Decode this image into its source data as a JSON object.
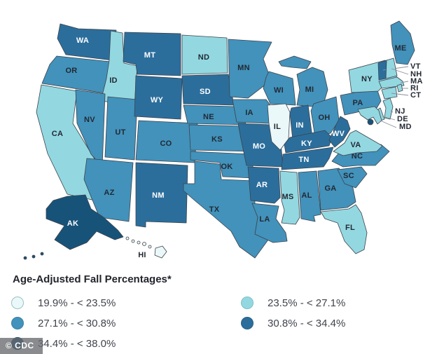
{
  "title": "Age-Adjusted Fall Percentages*",
  "watermark": "© CDC",
  "legend": {
    "items": [
      {
        "bin": 1,
        "label": "19.9% - < 23.5%",
        "color": "#eaf8f9"
      },
      {
        "bin": 2,
        "label": "23.5% - < 27.1%",
        "color": "#93d8e1"
      },
      {
        "bin": 3,
        "label": "27.1% - < 30.8%",
        "color": "#4292bb"
      },
      {
        "bin": 4,
        "label": "30.8% - < 34.4%",
        "color": "#2b6e9c"
      },
      {
        "bin": 5,
        "label": "34.4% - < 38.0%",
        "color": "#175379"
      }
    ]
  },
  "chart_data": {
    "type": "choropleth",
    "title": "Age-Adjusted Fall Percentages*",
    "region": "United States",
    "legend_position": "bottom",
    "bins": [
      "19.9% - < 23.5%",
      "23.5% - < 27.1%",
      "27.1% - < 30.8%",
      "30.8% - < 34.4%",
      "34.4% - < 38.0%"
    ],
    "bin_colors": [
      "#eaf8f9",
      "#93d8e1",
      "#4292bb",
      "#2b6e9c",
      "#175379"
    ],
    "outside_labeled_states": [
      "VT",
      "NH",
      "MA",
      "RI",
      "CT",
      "NJ",
      "DE",
      "MD"
    ],
    "states": [
      {
        "abbr": "WA",
        "bin": 4,
        "range": "30.8% - < 34.4%"
      },
      {
        "abbr": "OR",
        "bin": 3,
        "range": "27.1% - < 30.8%"
      },
      {
        "abbr": "CA",
        "bin": 2,
        "range": "23.5% - < 27.1%"
      },
      {
        "abbr": "ID",
        "bin": 2,
        "range": "23.5% - < 27.1%"
      },
      {
        "abbr": "NV",
        "bin": 3,
        "range": "27.1% - < 30.8%"
      },
      {
        "abbr": "UT",
        "bin": 3,
        "range": "27.1% - < 30.8%"
      },
      {
        "abbr": "AZ",
        "bin": 3,
        "range": "27.1% - < 30.8%"
      },
      {
        "abbr": "MT",
        "bin": 4,
        "range": "30.8% - < 34.4%"
      },
      {
        "abbr": "WY",
        "bin": 4,
        "range": "30.8% - < 34.4%"
      },
      {
        "abbr": "CO",
        "bin": 3,
        "range": "27.1% - < 30.8%"
      },
      {
        "abbr": "NM",
        "bin": 4,
        "range": "30.8% - < 34.4%"
      },
      {
        "abbr": "ND",
        "bin": 2,
        "range": "23.5% - < 27.1%"
      },
      {
        "abbr": "SD",
        "bin": 4,
        "range": "30.8% - < 34.4%"
      },
      {
        "abbr": "NE",
        "bin": 3,
        "range": "27.1% - < 30.8%"
      },
      {
        "abbr": "KS",
        "bin": 3,
        "range": "27.1% - < 30.8%"
      },
      {
        "abbr": "OK",
        "bin": 3,
        "range": "27.1% - < 30.8%"
      },
      {
        "abbr": "TX",
        "bin": 3,
        "range": "27.1% - < 30.8%"
      },
      {
        "abbr": "MN",
        "bin": 3,
        "range": "27.1% - < 30.8%"
      },
      {
        "abbr": "IA",
        "bin": 3,
        "range": "27.1% - < 30.8%"
      },
      {
        "abbr": "MO",
        "bin": 4,
        "range": "30.8% - < 34.4%"
      },
      {
        "abbr": "AR",
        "bin": 4,
        "range": "30.8% - < 34.4%"
      },
      {
        "abbr": "LA",
        "bin": 3,
        "range": "27.1% - < 30.8%"
      },
      {
        "abbr": "WI",
        "bin": 3,
        "range": "27.1% - < 30.8%"
      },
      {
        "abbr": "IL",
        "bin": 1,
        "range": "19.9% - < 23.5%"
      },
      {
        "abbr": "MI",
        "bin": 3,
        "range": "27.1% - < 30.8%"
      },
      {
        "abbr": "IN",
        "bin": 4,
        "range": "30.8% - < 34.4%"
      },
      {
        "abbr": "OH",
        "bin": 3,
        "range": "27.1% - < 30.8%"
      },
      {
        "abbr": "KY",
        "bin": 4,
        "range": "30.8% - < 34.4%"
      },
      {
        "abbr": "TN",
        "bin": 4,
        "range": "30.8% - < 34.4%"
      },
      {
        "abbr": "MS",
        "bin": 2,
        "range": "23.5% - < 27.1%"
      },
      {
        "abbr": "AL",
        "bin": 3,
        "range": "27.1% - < 30.8%"
      },
      {
        "abbr": "GA",
        "bin": 3,
        "range": "27.1% - < 30.8%"
      },
      {
        "abbr": "FL",
        "bin": 2,
        "range": "23.5% - < 27.1%"
      },
      {
        "abbr": "SC",
        "bin": 3,
        "range": "27.1% - < 30.8%"
      },
      {
        "abbr": "NC",
        "bin": 3,
        "range": "27.1% - < 30.8%"
      },
      {
        "abbr": "VA",
        "bin": 2,
        "range": "23.5% - < 27.1%"
      },
      {
        "abbr": "WV",
        "bin": 4,
        "range": "30.8% - < 34.4%"
      },
      {
        "abbr": "PA",
        "bin": 3,
        "range": "27.1% - < 30.8%"
      },
      {
        "abbr": "NY",
        "bin": 2,
        "range": "23.5% - < 27.1%"
      },
      {
        "abbr": "ME",
        "bin": 3,
        "range": "27.1% - < 30.8%"
      },
      {
        "abbr": "VT",
        "bin": 4,
        "range": "30.8% - < 34.4%"
      },
      {
        "abbr": "NH",
        "bin": 2,
        "range": "23.5% - < 27.1%"
      },
      {
        "abbr": "MA",
        "bin": 2,
        "range": "23.5% - < 27.1%"
      },
      {
        "abbr": "RI",
        "bin": 2,
        "range": "23.5% - < 27.1%"
      },
      {
        "abbr": "CT",
        "bin": 2,
        "range": "23.5% - < 27.1%"
      },
      {
        "abbr": "NJ",
        "bin": 2,
        "range": "23.5% - < 27.1%"
      },
      {
        "abbr": "DE",
        "bin": 2,
        "range": "23.5% - < 27.1%"
      },
      {
        "abbr": "MD",
        "bin": 2,
        "range": "23.5% - < 27.1%"
      },
      {
        "abbr": "DC",
        "bin": 5,
        "range": "34.4% - < 38.0%"
      },
      {
        "abbr": "AK",
        "bin": 5,
        "range": "34.4% - < 38.0%"
      },
      {
        "abbr": "HI",
        "bin": 1,
        "range": "19.9% - < 23.5%"
      }
    ]
  }
}
